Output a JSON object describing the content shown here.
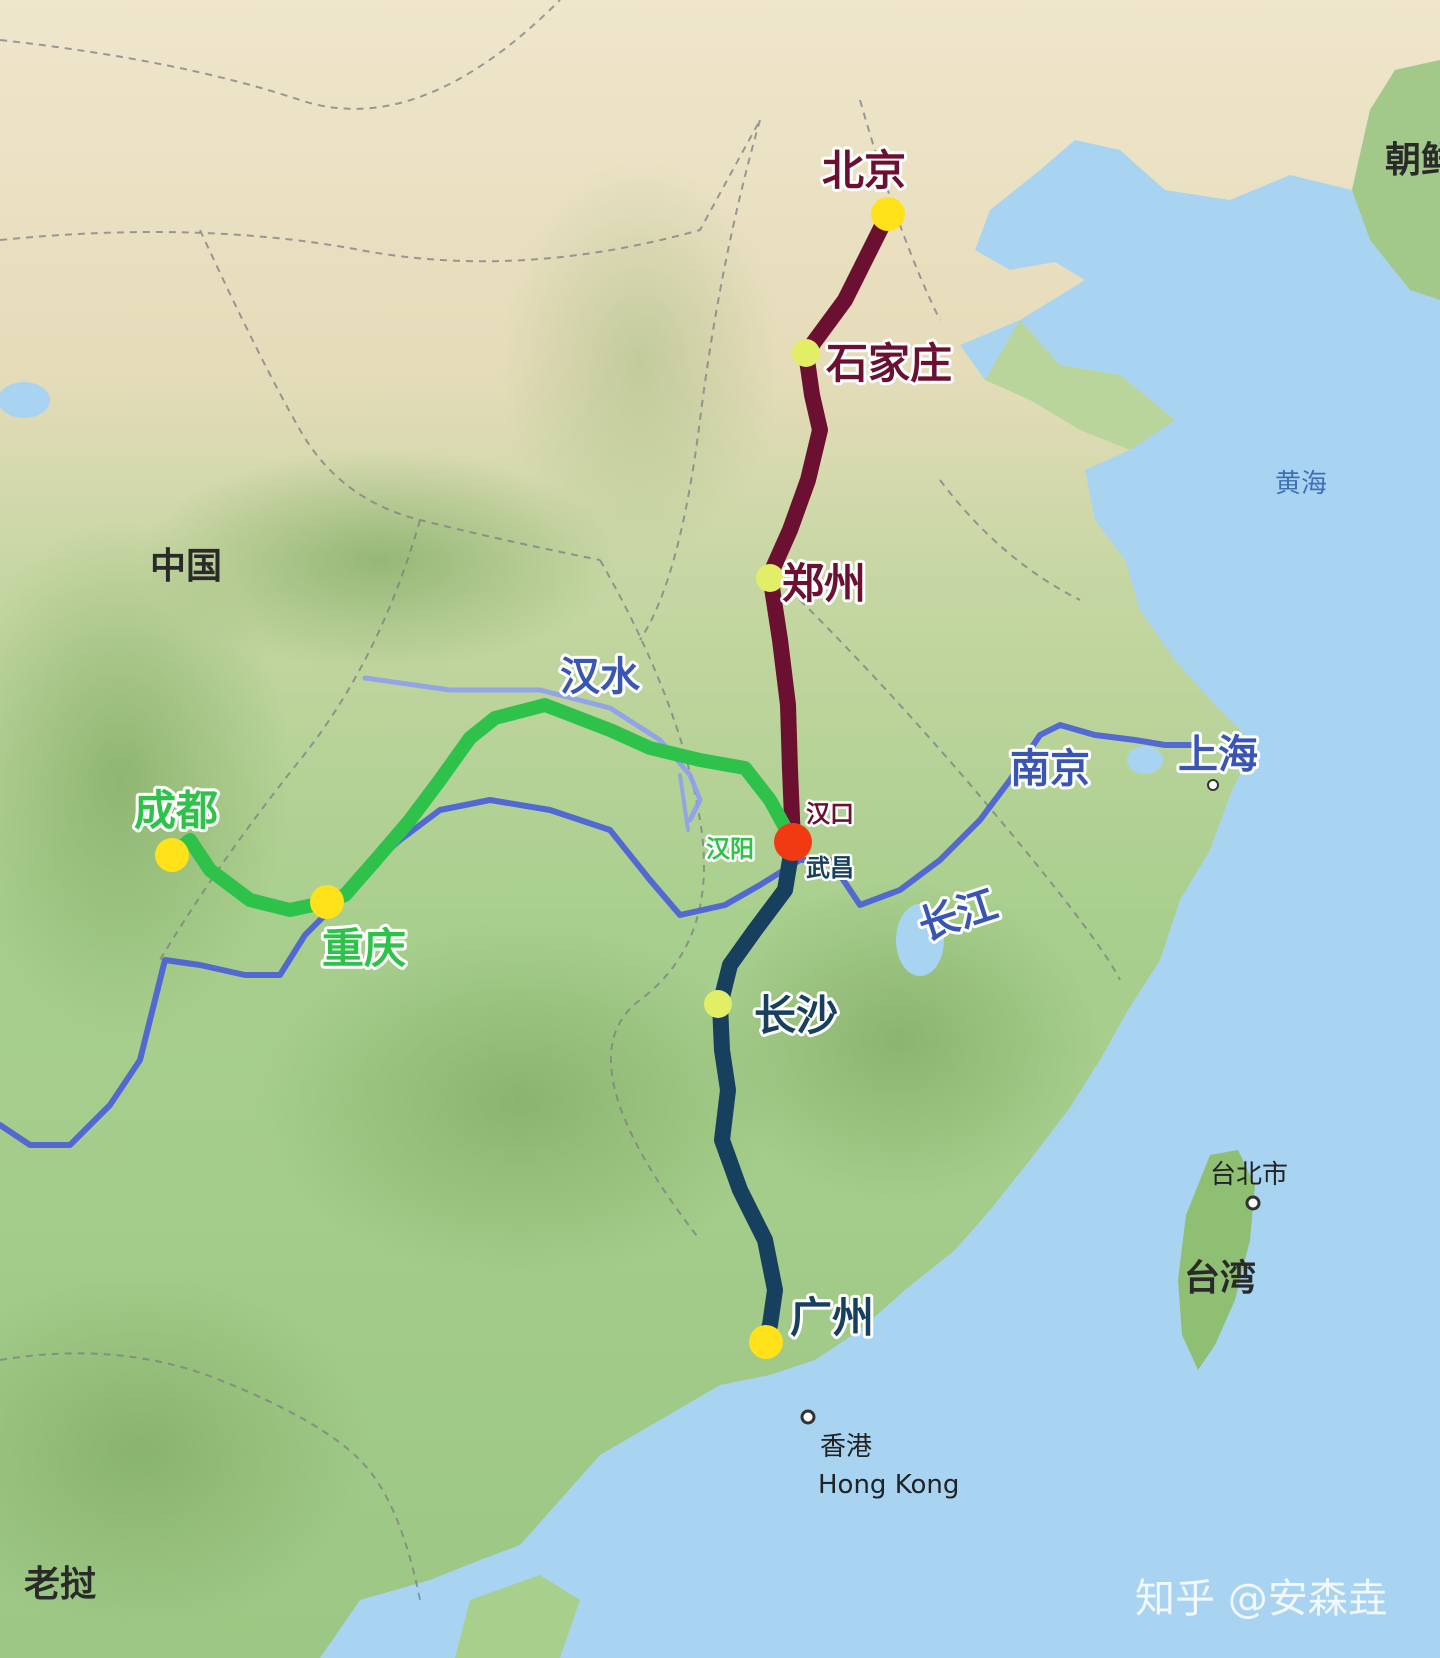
{
  "colors": {
    "sea": "#a8d4f2",
    "land_green": "#a9cf8e",
    "land_tan": "#e9dcbc",
    "route_beijing": "#6b1030",
    "route_chengdu": "#2fc24a",
    "route_guangzhou": "#17405e",
    "river": "#4d63d6",
    "river_label": "#3a56b4",
    "hub": "#f23a12",
    "city_dot": "#ffe21a",
    "stop_dot": "#e2ee66"
  },
  "base_labels": {
    "china": "中国",
    "korea": "朝鲜",
    "laos": "老挝",
    "taiwan": "台湾",
    "yellow_sea": "黄海",
    "taipei": "台北市",
    "hongkong_cn": "香港",
    "hongkong_en": "Hong Kong"
  },
  "cities": {
    "beijing": "北京",
    "shijiazhuang": "石家庄",
    "zhengzhou": "郑州",
    "hankou": "汉口",
    "hanyang": "汉阳",
    "wuchang": "武昌",
    "changsha": "长沙",
    "guangzhou": "广州",
    "chengdu": "成都",
    "chongqing": "重庆",
    "nanjing": "南京",
    "shanghai": "上海"
  },
  "rivers": {
    "hanshui": "汉水",
    "changjiang": "长江"
  },
  "watermark": "知乎 @安森垚"
}
